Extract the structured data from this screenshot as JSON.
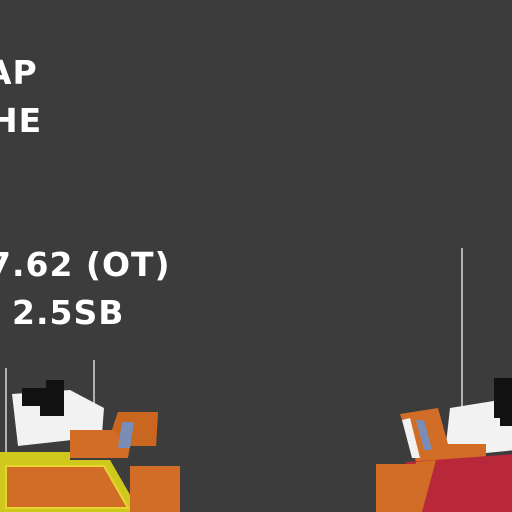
{
  "hud": {
    "line1": "AP",
    "line2": "HE",
    "line3": "7.62 (OT)",
    "line4": "2.5SB"
  },
  "vehicles": {
    "left": {
      "hull_color": "#cfc91e",
      "turret_color": "#d16d26"
    },
    "right": {
      "hull_color": "#b8273a",
      "turret_color": "#d16d26"
    }
  },
  "colors": {
    "background": "#3c3c3c",
    "accent_orange": "#d16d26",
    "window_blue": "#7a8cb8"
  }
}
